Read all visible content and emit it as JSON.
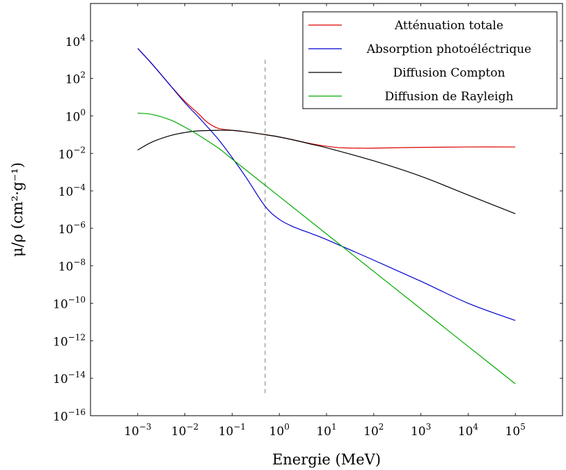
{
  "chart_data": {
    "type": "line",
    "title": "",
    "xlabel": "Energie (MeV)",
    "ylabel": "μ/ρ (cm²·g⁻¹)",
    "x_scale": "log",
    "y_scale": "log",
    "x_ticks": [
      {
        "base": "10",
        "exp": "−3",
        "value": 0.001
      },
      {
        "base": "10",
        "exp": "−2",
        "value": 0.01
      },
      {
        "base": "10",
        "exp": "−1",
        "value": 0.1
      },
      {
        "base": "10",
        "exp": "0",
        "value": 1
      },
      {
        "base": "10",
        "exp": "1",
        "value": 10
      },
      {
        "base": "10",
        "exp": "2",
        "value": 100
      },
      {
        "base": "10",
        "exp": "3",
        "value": 1000
      },
      {
        "base": "10",
        "exp": "4",
        "value": 10000
      },
      {
        "base": "10",
        "exp": "5",
        "value": 100000
      }
    ],
    "y_ticks": [
      {
        "base": "10",
        "exp": "4",
        "value": 10000.0
      },
      {
        "base": "10",
        "exp": "2",
        "value": 100.0
      },
      {
        "base": "10",
        "exp": "0",
        "value": 1
      },
      {
        "base": "10",
        "exp": "−2",
        "value": 0.01
      },
      {
        "base": "10",
        "exp": "−4",
        "value": 0.0001
      },
      {
        "base": "10",
        "exp": "−6",
        "value": 1e-06
      },
      {
        "base": "10",
        "exp": "−8",
        "value": 1e-08
      },
      {
        "base": "10",
        "exp": "−10",
        "value": 1e-10
      },
      {
        "base": "10",
        "exp": "−12",
        "value": 1e-12
      },
      {
        "base": "10",
        "exp": "−14",
        "value": 1e-14
      },
      {
        "base": "10",
        "exp": "−16",
        "value": 1e-16
      }
    ],
    "xlim": [
      0.0001,
      1000000
    ],
    "ylim": [
      1e-16,
      1000000
    ],
    "grid": false,
    "legend_position": "top-right",
    "reference_line": {
      "x": 0.5,
      "y_range": [
        1e-15,
        1000.0
      ],
      "style": "dashed",
      "color": "#999999"
    },
    "series": [
      {
        "name": "Atténuation totale",
        "color": "#dd0000",
        "points": [
          [
            0.001,
            4000
          ],
          [
            0.002,
            600
          ],
          [
            0.005,
            40
          ],
          [
            0.01,
            6
          ],
          [
            0.02,
            1.2
          ],
          [
            0.03,
            0.45
          ],
          [
            0.05,
            0.22
          ],
          [
            0.1,
            0.17
          ],
          [
            0.2,
            0.14
          ],
          [
            0.5,
            0.1
          ],
          [
            1,
            0.075
          ],
          [
            2,
            0.052
          ],
          [
            5,
            0.032
          ],
          [
            10,
            0.024
          ],
          [
            20,
            0.02
          ],
          [
            50,
            0.019
          ],
          [
            100,
            0.019
          ],
          [
            1000,
            0.021
          ],
          [
            10000,
            0.022
          ],
          [
            100000,
            0.022
          ]
        ]
      },
      {
        "name": "Absorption photoéléctrique",
        "color": "#0000cc",
        "points": [
          [
            0.001,
            4000
          ],
          [
            0.002,
            600
          ],
          [
            0.005,
            40
          ],
          [
            0.01,
            5
          ],
          [
            0.02,
            0.8
          ],
          [
            0.05,
            0.06
          ],
          [
            0.1,
            0.006
          ],
          [
            0.2,
            0.0005
          ],
          [
            0.5,
            1.5e-05
          ],
          [
            1,
            3e-06
          ],
          [
            2,
            1.2e-06
          ],
          [
            5,
            5e-07
          ],
          [
            10,
            2.5e-07
          ],
          [
            100,
            2e-08
          ],
          [
            1000,
            1.5e-09
          ],
          [
            10000,
            1e-10
          ],
          [
            100000,
            1.2e-11
          ]
        ]
      },
      {
        "name": "Diffusion Compton",
        "color": "#000000",
        "points": [
          [
            0.001,
            0.015
          ],
          [
            0.002,
            0.04
          ],
          [
            0.005,
            0.09
          ],
          [
            0.01,
            0.13
          ],
          [
            0.02,
            0.16
          ],
          [
            0.05,
            0.17
          ],
          [
            0.1,
            0.17
          ],
          [
            0.2,
            0.14
          ],
          [
            0.5,
            0.1
          ],
          [
            1,
            0.075
          ],
          [
            2,
            0.052
          ],
          [
            5,
            0.03
          ],
          [
            10,
            0.02
          ],
          [
            100,
            0.004
          ],
          [
            1000,
            0.0006
          ],
          [
            10000,
            6e-05
          ],
          [
            100000,
            6e-06
          ]
        ]
      },
      {
        "name": "Diffusion de Rayleigh",
        "color": "#00aa00",
        "points": [
          [
            0.001,
            1.4
          ],
          [
            0.002,
            1.2
          ],
          [
            0.005,
            0.6
          ],
          [
            0.01,
            0.25
          ],
          [
            0.02,
            0.09
          ],
          [
            0.05,
            0.02
          ],
          [
            0.1,
            0.005
          ],
          [
            1,
            5e-05
          ],
          [
            10,
            5e-07
          ],
          [
            100,
            5e-09
          ],
          [
            1000,
            5e-11
          ],
          [
            10000,
            5e-13
          ],
          [
            100000,
            5e-15
          ]
        ]
      }
    ]
  }
}
